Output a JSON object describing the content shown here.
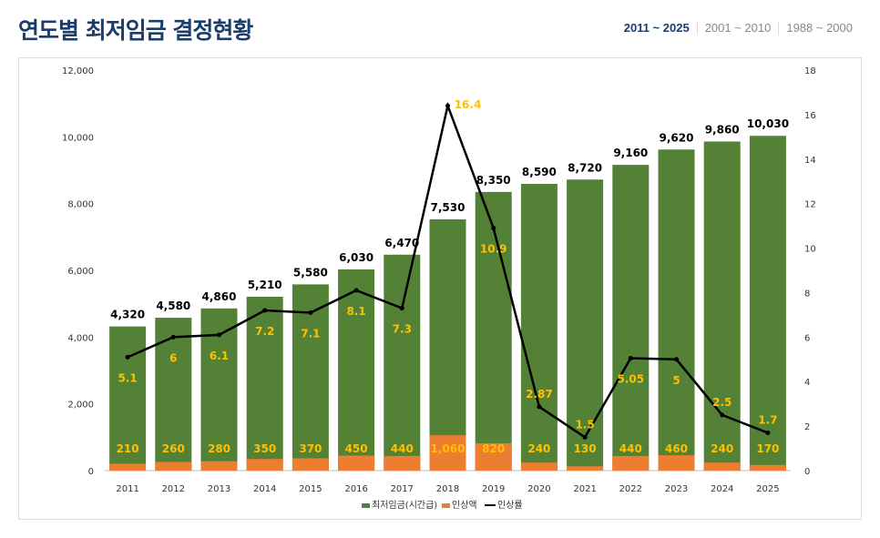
{
  "header": {
    "title": "연도별 최저임금 결정현황",
    "tabs": [
      {
        "label": "2011 ~ 2025",
        "active": true
      },
      {
        "label": "2001 ~ 2010",
        "active": false
      },
      {
        "label": "1988 ~ 2000",
        "active": false
      }
    ]
  },
  "chart_data": {
    "type": "bar+line",
    "categories": [
      "2011",
      "2012",
      "2013",
      "2014",
      "2015",
      "2016",
      "2017",
      "2018",
      "2019",
      "2020",
      "2021",
      "2022",
      "2023",
      "2024",
      "2025"
    ],
    "series": [
      {
        "name": "최저임금(시간급)",
        "type": "bar",
        "axis": "left",
        "color": "#538135",
        "values": [
          4320,
          4580,
          4860,
          5210,
          5580,
          6030,
          6470,
          7530,
          8350,
          8590,
          8720,
          9160,
          9620,
          9860,
          10030
        ],
        "labels": [
          "4,320",
          "4,580",
          "4,860",
          "5,210",
          "5,580",
          "6,030",
          "6,470",
          "7,530",
          "8,350",
          "8,590",
          "8,720",
          "9,160",
          "9,620",
          "9,860",
          "10,030"
        ]
      },
      {
        "name": "인상액",
        "type": "bar",
        "axis": "left",
        "color": "#ed7d31",
        "values": [
          210,
          260,
          280,
          350,
          370,
          450,
          440,
          1060,
          820,
          240,
          130,
          440,
          460,
          240,
          170
        ],
        "labels": [
          "210",
          "260",
          "280",
          "350",
          "370",
          "450",
          "440",
          "1,060",
          "820",
          "240",
          "130",
          "440",
          "460",
          "240",
          "170"
        ]
      },
      {
        "name": "인상률",
        "type": "line",
        "axis": "right",
        "color": "#000000",
        "values": [
          5.1,
          6,
          6.1,
          7.2,
          7.1,
          8.1,
          7.3,
          16.4,
          10.9,
          2.87,
          1.5,
          5.05,
          5,
          2.5,
          1.7
        ],
        "labels": [
          "5.1",
          "6",
          "6.1",
          "7.2",
          "7.1",
          "8.1",
          "7.3",
          "16.4",
          "10.9",
          "2.87",
          "1.5",
          "5.05",
          "5",
          "2.5",
          "1.7"
        ]
      }
    ],
    "y_left": {
      "range": [
        0,
        12000
      ],
      "ticks": [
        "0",
        "2,000",
        "4,000",
        "6,000",
        "8,000",
        "10,000",
        "12,000"
      ]
    },
    "y_right": {
      "range": [
        0,
        18
      ],
      "ticks": [
        "0",
        "2",
        "4",
        "6",
        "8",
        "10",
        "12",
        "14",
        "16",
        "18"
      ]
    },
    "label_color": "#ffc000",
    "legend": "bottom",
    "grid": false
  }
}
